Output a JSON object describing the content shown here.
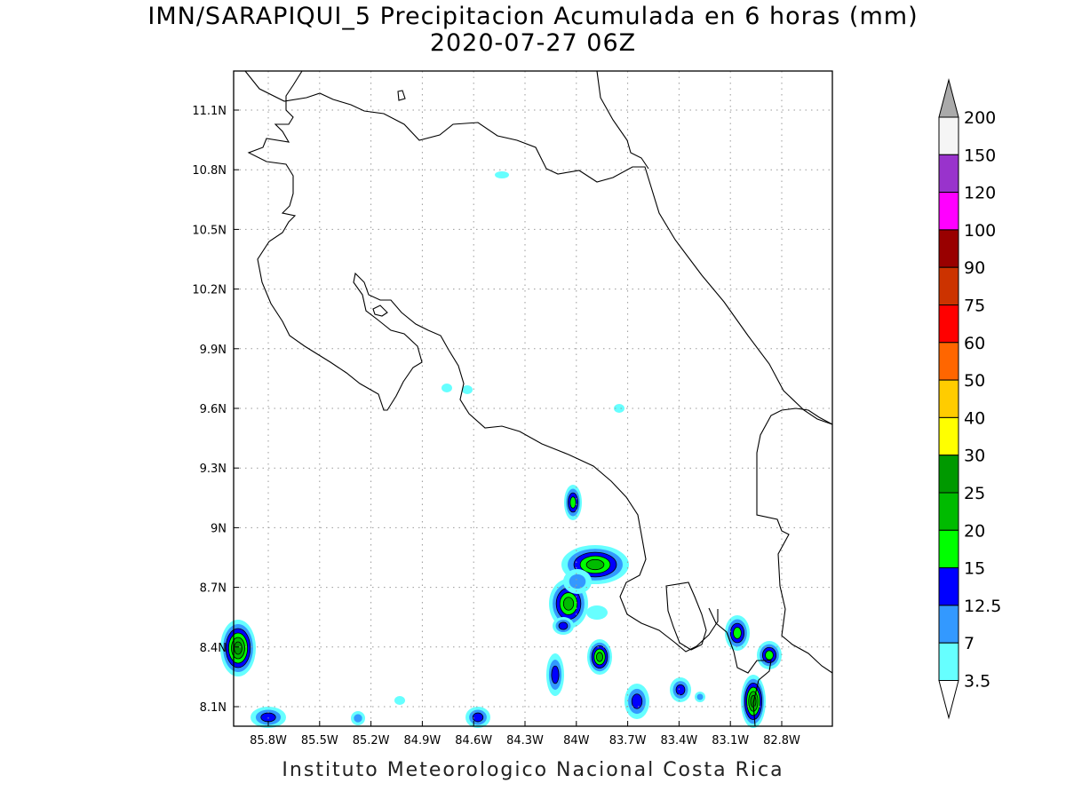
{
  "title": {
    "line1": "IMN/SARAPIQUI_5 Precipitacion Acumulada en 6 horas (mm)",
    "line2": "2020-07-27 06Z"
  },
  "footer": "Instituto Meteorologico Nacional Costa Rica",
  "map": {
    "lat_labels": [
      "11.1N",
      "10.8N",
      "10.5N",
      "10.2N",
      "9.9N",
      "9.6N",
      "9.3N",
      "9N",
      "8.7N",
      "8.4N",
      "8.1N"
    ],
    "lon_labels": [
      "85.8W",
      "85.5W",
      "85.2W",
      "84.9W",
      "84.6W",
      "84.3W",
      "84W",
      "83.7W",
      "83.4W",
      "83.1W",
      "82.8W"
    ],
    "grid": "dotted"
  },
  "colorbar": {
    "labels": [
      "200",
      "150",
      "120",
      "100",
      "90",
      "75",
      "60",
      "50",
      "40",
      "30",
      "25",
      "20",
      "15",
      "12.5",
      "7",
      "3.5"
    ],
    "colors": [
      "#f5f5f5",
      "#9933cc",
      "#ff00ff",
      "#990000",
      "#cc3300",
      "#ff0000",
      "#ff6600",
      "#ffcc00",
      "#ffff00",
      "#009900",
      "#00bb00",
      "#00ff00",
      "#0000ff",
      "#3399ff",
      "#66ffff"
    ],
    "upper_arrow_color": "#aaaaaa",
    "lower_arrow_color": "#ffffff"
  },
  "legend_colors": {
    "light_cyan": "#66ffff",
    "light_blue": "#3399ff",
    "blue": "#0000ff",
    "green_light": "#00ff00",
    "green": "#00bb00",
    "green_dark": "#009900",
    "yellow": "#ffff00"
  }
}
